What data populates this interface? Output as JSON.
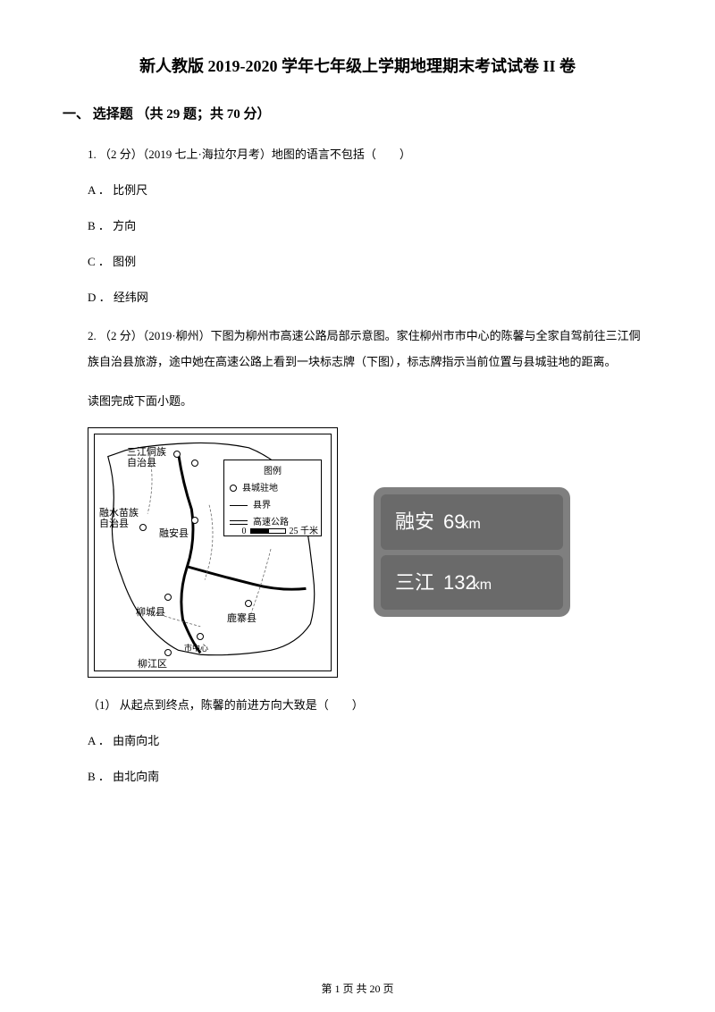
{
  "title": "新人教版 2019-2020 学年七年级上学期地理期末考试试卷 II 卷",
  "section": "一、 选择题 （共 29 题；共 70 分）",
  "q1": {
    "text": "1. （2 分）（2019 七上·海拉尔月考）地图的语言不包括（　　）",
    "A": "A ． 比例尺",
    "B": "B ． 方向",
    "C": "C ． 图例",
    "D": "D ． 经纬网"
  },
  "q2": {
    "text": "2. （2 分）（2019·柳州）下图为柳州市高速公路局部示意图。家住柳州市市中心的陈馨与全家自驾前往三江侗　　族自治县旅游，途中她在高速公路上看到一块标志牌（下图），标志牌指示当前位置与县城驻地的距离。",
    "read": "读图完成下面小题。",
    "sub1": "（1） 从起点到终点，陈馨的前进方向大致是（　　）",
    "A": "A ． 由南向北",
    "B": "B ． 由北向南"
  },
  "map": {
    "labels": {
      "sanjiang": "三江侗族\n自治县",
      "rongshui": "融水苗族\n自治县",
      "rongan": "融安县",
      "liucheng": "柳城县",
      "luzhai": "鹿寨县",
      "liujiang": "柳江区",
      "center": "市中心"
    },
    "legend": {
      "title": "图例",
      "items": [
        "县城驻地",
        "县界",
        "高速公路"
      ],
      "scale_left": "0",
      "scale_right": "25 千米"
    }
  },
  "sign": {
    "row1_name": "融安",
    "row1_dist": "69",
    "row1_unit": "km",
    "row2_name": "三江",
    "row2_dist": "132",
    "row2_unit": "km"
  },
  "footer": "第 1 页 共 20 页"
}
